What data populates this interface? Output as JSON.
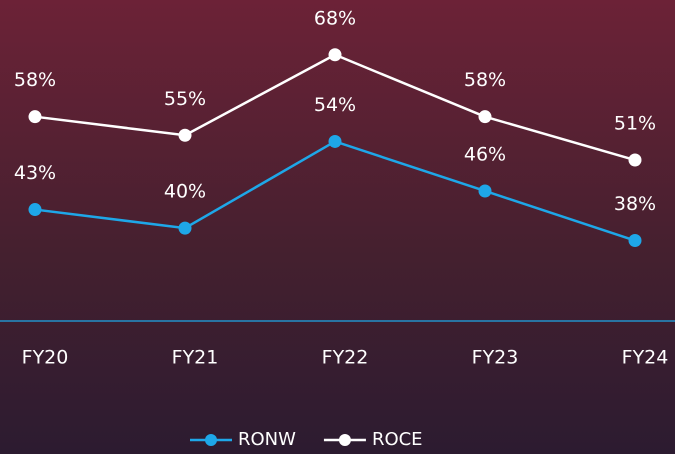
{
  "chart_data": {
    "type": "line",
    "categories": [
      "FY20",
      "FY21",
      "FY22",
      "FY23",
      "FY24"
    ],
    "series": [
      {
        "name": "RONW",
        "color": "#1ea7e8",
        "values": [
          43,
          40,
          54,
          46,
          38
        ],
        "value_labels": [
          "43%",
          "40%",
          "54%",
          "46%",
          "38%"
        ]
      },
      {
        "name": "ROCE",
        "color": "#ffffff",
        "values": [
          58,
          55,
          68,
          58,
          51
        ],
        "value_labels": [
          "58%",
          "55%",
          "68%",
          "58%",
          "51%"
        ]
      }
    ],
    "ylim": [
      25,
      72
    ]
  }
}
